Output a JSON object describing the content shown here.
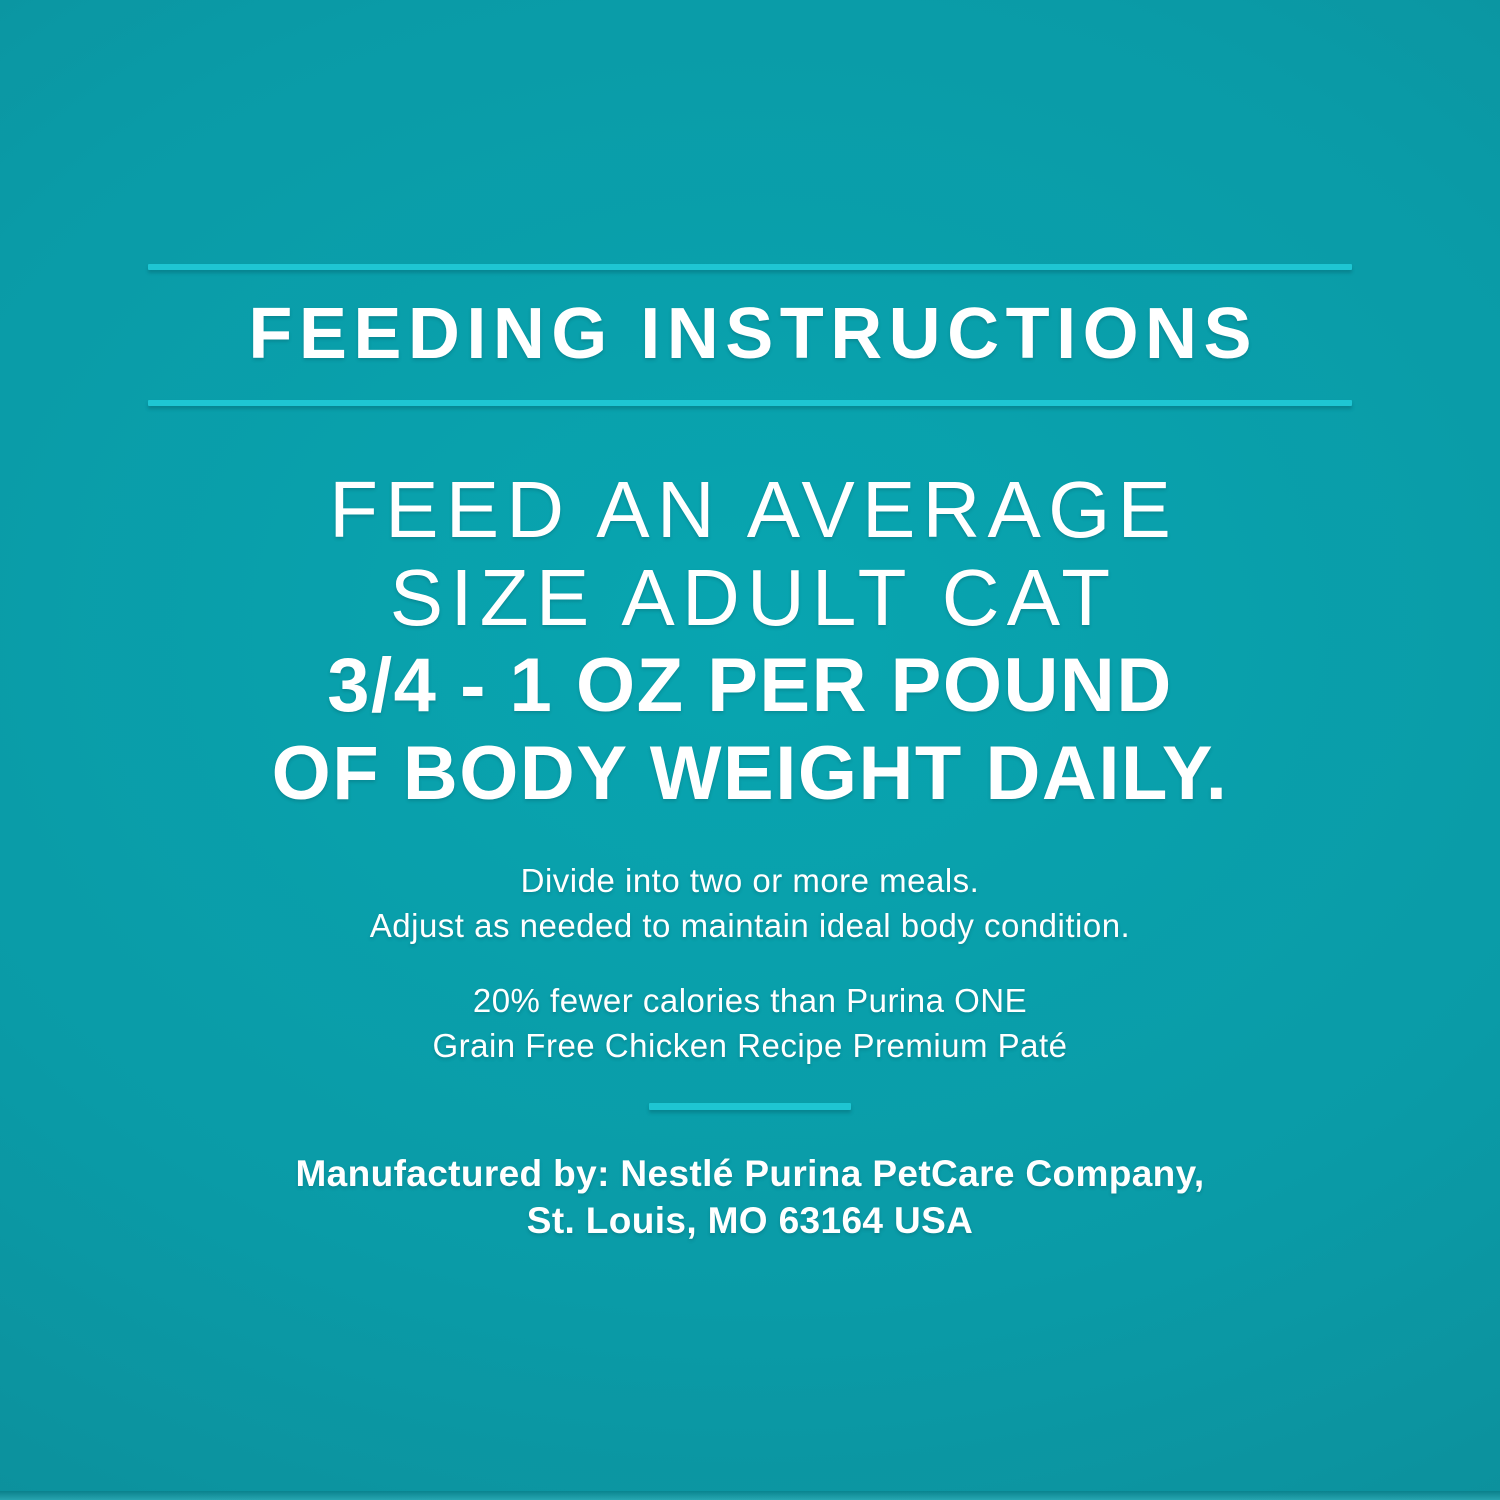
{
  "label": {
    "title": "FEEDING INSTRUCTIONS",
    "headline": {
      "line1": "FEED AN AVERAGE",
      "line2": "SIZE ADULT CAT",
      "line3": "3/4 - 1 OZ PER POUND",
      "line4": "OF BODY WEIGHT DAILY."
    },
    "meals": {
      "line1": "Divide into two or more meals.",
      "line2": "Adjust as needed to maintain ideal body condition."
    },
    "calories": {
      "line1": "20% fewer calories than Purina ONE",
      "line2": "Grain Free Chicken Recipe Premium Paté"
    },
    "manufacturer": {
      "line1": "Manufactured by: Nestlé Purina PetCare Company,",
      "line2": "St. Louis, MO 63164 USA"
    },
    "colors": {
      "background_center": "#08a5b0",
      "background_edge": "#0f8894",
      "rule": "#1ec6d3",
      "text": "#ffffff"
    }
  }
}
